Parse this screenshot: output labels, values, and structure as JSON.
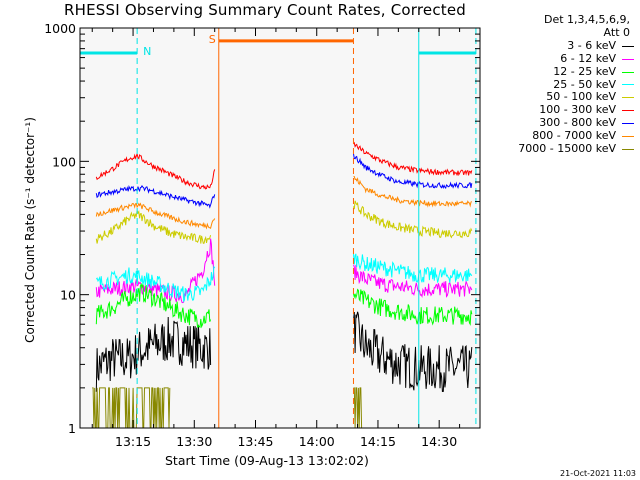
{
  "chart_data": {
    "type": "line",
    "title": "RHESSI Observing Summary Count Rates, Corrected",
    "xlabel": "Start Time (09-Aug-13 13:02:02)",
    "ylabel": "Corrected Count Rate (s⁻¹ detector⁻¹)",
    "yscale": "log",
    "ylim": [
      1,
      1000
    ],
    "xlim": [
      "13:02",
      "14:40"
    ],
    "y_ticks": [
      "1",
      "10",
      "100",
      "1000"
    ],
    "x_ticks": [
      "13:15",
      "13:30",
      "13:45",
      "14:00",
      "14:15",
      "14:30"
    ],
    "legend_header": [
      "Det 1,3,4,5,6,9,",
      "Att 0"
    ],
    "legend_position": "top-right outside",
    "series": [
      {
        "name": "3 - 6 keV",
        "color": "#000000",
        "segments": [
          {
            "x": [
              "13:06",
              "13:10",
              "13:14",
              "13:17",
              "13:20",
              "13:24",
              "13:28",
              "13:32",
              "13:34"
            ],
            "y": [
              2.8,
              3.3,
              3.3,
              3.8,
              4.2,
              4.6,
              4.3,
              4.0,
              4.0
            ]
          },
          {
            "x": [
              "14:09",
              "14:12",
              "14:16",
              "14:20",
              "14:25",
              "14:30",
              "14:35",
              "14:38"
            ],
            "y": [
              5.5,
              4.0,
              3.4,
              3.0,
              2.8,
              2.8,
              2.8,
              2.8
            ]
          }
        ]
      },
      {
        "name": "6 - 12 keV",
        "color": "#ff00ff",
        "segments": [
          {
            "x": [
              "13:06",
              "13:10",
              "13:14",
              "13:17",
              "13:20",
              "13:24",
              "13:28",
              "13:32",
              "13:34",
              "13:35"
            ],
            "y": [
              10.5,
              11,
              11.5,
              11.5,
              11,
              10.2,
              9.8,
              15,
              24,
              12
            ]
          },
          {
            "x": [
              "14:09",
              "14:12",
              "14:16",
              "14:20",
              "14:25",
              "14:30",
              "14:35",
              "14:38"
            ],
            "y": [
              15,
              13,
              12,
              11.5,
              11,
              11,
              11,
              11
            ]
          }
        ]
      },
      {
        "name": "12 - 25 keV",
        "color": "#00ff00",
        "segments": [
          {
            "x": [
              "13:06",
              "13:10",
              "13:14",
              "13:17",
              "13:20",
              "13:24",
              "13:28",
              "13:32",
              "13:34"
            ],
            "y": [
              7,
              8,
              9.5,
              10.5,
              9.5,
              8,
              7,
              6.5,
              7
            ]
          },
          {
            "x": [
              "14:09",
              "14:12",
              "14:16",
              "14:20",
              "14:25",
              "14:30",
              "14:35",
              "14:38"
            ],
            "y": [
              10,
              9,
              8,
              7.5,
              7,
              7,
              7,
              7
            ]
          }
        ]
      },
      {
        "name": "25 - 50 keV",
        "color": "#00ffff",
        "segments": [
          {
            "x": [
              "13:06",
              "13:10",
              "13:14",
              "13:17",
              "13:20",
              "13:24",
              "13:28",
              "13:32",
              "13:34",
              "13:35"
            ],
            "y": [
              12,
              13,
              14,
              13.5,
              12.5,
              11,
              10,
              10.5,
              13,
              15
            ]
          },
          {
            "x": [
              "14:09",
              "14:12",
              "14:16",
              "14:20",
              "14:25",
              "14:30",
              "14:35",
              "14:38"
            ],
            "y": [
              19,
              17,
              16,
              15,
              14,
              14,
              14,
              14
            ]
          }
        ]
      },
      {
        "name": "50 - 100 keV",
        "color": "#cccc00",
        "segments": [
          {
            "x": [
              "13:06",
              "13:10",
              "13:14",
              "13:16",
              "13:18",
              "13:20",
              "13:24",
              "13:28",
              "13:32",
              "13:34"
            ],
            "y": [
              26,
              30,
              37,
              40,
              37,
              33,
              29,
              27,
              26,
              27
            ]
          },
          {
            "x": [
              "14:09",
              "14:12",
              "14:16",
              "14:20",
              "14:25",
              "14:30",
              "14:35",
              "14:38"
            ],
            "y": [
              48,
              40,
              35,
              32,
              30,
              29,
              29,
              29
            ]
          }
        ]
      },
      {
        "name": "100 - 300 keV",
        "color": "#ff0000",
        "segments": [
          {
            "x": [
              "13:06",
              "13:10",
              "13:14",
              "13:16",
              "13:18",
              "13:20",
              "13:24",
              "13:28",
              "13:32",
              "13:34",
              "13:35"
            ],
            "y": [
              75,
              88,
              105,
              110,
              100,
              92,
              80,
              70,
              64,
              64,
              84
            ]
          },
          {
            "x": [
              "14:09",
              "14:12",
              "14:16",
              "14:20",
              "14:25",
              "14:30",
              "14:35",
              "14:38"
            ],
            "y": [
              135,
              115,
              100,
              90,
              85,
              83,
              82,
              82
            ]
          }
        ]
      },
      {
        "name": "300 - 800 keV",
        "color": "#0000ff",
        "segments": [
          {
            "x": [
              "13:06",
              "13:10",
              "13:14",
              "13:17",
              "13:20",
              "13:24",
              "13:28",
              "13:32",
              "13:34",
              "13:35"
            ],
            "y": [
              56,
              59,
              62,
              63,
              60,
              55,
              51,
              48,
              46,
              58
            ]
          },
          {
            "x": [
              "14:09",
              "14:12",
              "14:16",
              "14:20",
              "14:25",
              "14:30",
              "14:35",
              "14:38"
            ],
            "y": [
              110,
              90,
              78,
              70,
              67,
              66,
              66,
              66
            ]
          }
        ]
      },
      {
        "name": "800 - 7000 keV",
        "color": "#ff8800",
        "segments": [
          {
            "x": [
              "13:06",
              "13:10",
              "13:14",
              "13:16",
              "13:18",
              "13:20",
              "13:24",
              "13:28",
              "13:32",
              "13:34",
              "13:35"
            ],
            "y": [
              40,
              43,
              46,
              47,
              45,
              42,
              38,
              35,
              33,
              33,
              38
            ]
          },
          {
            "x": [
              "14:09",
              "14:12",
              "14:16",
              "14:20",
              "14:25",
              "14:30",
              "14:35",
              "14:38"
            ],
            "y": [
              76,
              62,
              55,
              51,
              49,
              48,
              48,
              48
            ]
          }
        ]
      },
      {
        "name": "7000 - 15000 keV",
        "color": "#888800",
        "segments": [
          {
            "x": [
              "13:05",
              "13:10",
              "13:15",
              "13:20",
              "13:24"
            ],
            "y": [
              2,
              2,
              2,
              2,
              2
            ]
          },
          {
            "x": [
              "14:09",
              "14:11"
            ],
            "y": [
              2,
              2
            ]
          }
        ]
      }
    ],
    "bars": [
      {
        "label": "N",
        "color": "#00e5e5",
        "x": [
          "13:02",
          "13:16"
        ],
        "y": 650
      },
      {
        "label": "S",
        "color": "#ff6600",
        "x": [
          "13:36",
          "14:09"
        ],
        "y": 800
      },
      {
        "label": "",
        "color": "#00e5e5",
        "x": [
          "14:25",
          "14:39"
        ],
        "y": 650
      }
    ],
    "vlines": [
      {
        "x": "13:02",
        "color": "#00e5e5",
        "style": "solid"
      },
      {
        "x": "13:16",
        "color": "#00e5e5",
        "style": "dashed"
      },
      {
        "x": "13:36",
        "color": "#ff6600",
        "style": "solid"
      },
      {
        "x": "14:09",
        "color": "#ff6600",
        "style": "dashed"
      },
      {
        "x": "14:25",
        "color": "#00e5e5",
        "style": "solid"
      },
      {
        "x": "14:39",
        "color": "#00e5e5",
        "style": "dashed"
      }
    ],
    "timestamp": "21-Oct-2021 11:03"
  }
}
